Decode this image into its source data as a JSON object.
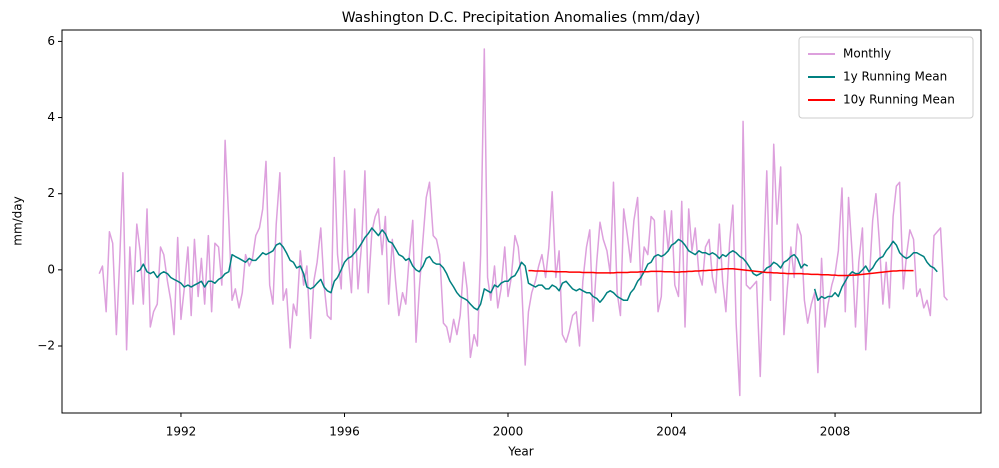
{
  "chart_data": {
    "type": "line",
    "title": "Washington D.C. Precipitation Anomalies (mm/day)",
    "xlabel": "Year",
    "ylabel": "mm/day",
    "x": [
      1990.0,
      1990.08,
      1990.17,
      1990.25,
      1990.33,
      1990.42,
      1990.5,
      1990.58,
      1990.67,
      1990.75,
      1990.83,
      1990.92,
      1991.0,
      1991.08,
      1991.17,
      1991.25,
      1991.33,
      1991.42,
      1991.5,
      1991.58,
      1991.67,
      1991.75,
      1991.83,
      1991.92,
      1992.0,
      1992.08,
      1992.17,
      1992.25,
      1992.33,
      1992.42,
      1992.5,
      1992.58,
      1992.67,
      1992.75,
      1992.83,
      1992.92,
      1993.0,
      1993.08,
      1993.17,
      1993.25,
      1993.33,
      1993.42,
      1993.5,
      1993.58,
      1993.67,
      1993.75,
      1993.83,
      1993.92,
      1994.0,
      1994.08,
      1994.17,
      1994.25,
      1994.33,
      1994.42,
      1994.5,
      1994.58,
      1994.67,
      1994.75,
      1994.83,
      1994.92,
      1995.0,
      1995.08,
      1995.17,
      1995.25,
      1995.33,
      1995.42,
      1995.5,
      1995.58,
      1995.67,
      1995.75,
      1995.83,
      1995.92,
      1996.0,
      1996.08,
      1996.17,
      1996.25,
      1996.33,
      1996.42,
      1996.5,
      1996.58,
      1996.67,
      1996.75,
      1996.83,
      1996.92,
      1997.0,
      1997.08,
      1997.17,
      1997.25,
      1997.33,
      1997.42,
      1997.5,
      1997.58,
      1997.67,
      1997.75,
      1997.83,
      1997.92,
      1998.0,
      1998.08,
      1998.17,
      1998.25,
      1998.33,
      1998.42,
      1998.5,
      1998.58,
      1998.67,
      1998.75,
      1998.83,
      1998.92,
      1999.0,
      1999.08,
      1999.17,
      1999.25,
      1999.33,
      1999.42,
      1999.5,
      1999.58,
      1999.67,
      1999.75,
      1999.83,
      1999.92,
      2000.0,
      2000.08,
      2000.17,
      2000.25,
      2000.33,
      2000.42,
      2000.5,
      2000.58,
      2000.67,
      2000.75,
      2000.83,
      2000.92,
      2001.0,
      2001.08,
      2001.17,
      2001.25,
      2001.33,
      2001.42,
      2001.5,
      2001.58,
      2001.67,
      2001.75,
      2001.83,
      2001.92,
      2002.0,
      2002.08,
      2002.17,
      2002.25,
      2002.33,
      2002.42,
      2002.5,
      2002.58,
      2002.67,
      2002.75,
      2002.83,
      2002.92,
      2003.0,
      2003.08,
      2003.17,
      2003.25,
      2003.33,
      2003.42,
      2003.5,
      2003.58,
      2003.67,
      2003.75,
      2003.83,
      2003.92,
      2004.0,
      2004.08,
      2004.17,
      2004.25,
      2004.33,
      2004.42,
      2004.5,
      2004.58,
      2004.67,
      2004.75,
      2004.83,
      2004.92,
      2005.0,
      2005.08,
      2005.17,
      2005.25,
      2005.33,
      2005.42,
      2005.5,
      2005.58,
      2005.67,
      2005.75,
      2005.83,
      2005.92,
      2006.0,
      2006.08,
      2006.17,
      2006.25,
      2006.33,
      2006.42,
      2006.5,
      2006.58,
      2006.67,
      2006.75,
      2006.83,
      2006.92,
      2007.0,
      2007.08,
      2007.17,
      2007.25,
      2007.33,
      2007.42,
      2007.5,
      2007.58,
      2007.67,
      2007.75,
      2007.83,
      2007.92,
      2008.0,
      2008.08,
      2008.17,
      2008.25,
      2008.33,
      2008.42,
      2008.5,
      2008.58,
      2008.67,
      2008.75,
      2008.83,
      2008.92,
      2009.0,
      2009.08,
      2009.17,
      2009.25,
      2009.33,
      2009.42,
      2009.5,
      2009.58,
      2009.67,
      2009.75,
      2009.83,
      2009.92,
      2010.0,
      2010.08,
      2010.17,
      2010.25,
      2010.33,
      2010.42,
      2010.5,
      2010.58,
      2010.67,
      2010.75
    ],
    "series": [
      {
        "name": "Monthly",
        "color": "#dda0dd",
        "values": [
          -0.1,
          0.1,
          -1.1,
          1.0,
          0.7,
          -1.7,
          0.2,
          2.55,
          -2.1,
          0.6,
          -0.9,
          1.2,
          0.5,
          -0.9,
          1.6,
          -1.5,
          -1.1,
          -0.9,
          0.6,
          0.4,
          -0.3,
          -0.8,
          -1.7,
          0.85,
          -1.3,
          -0.5,
          0.6,
          -1.2,
          0.8,
          -0.7,
          0.3,
          -0.9,
          0.9,
          -1.1,
          0.7,
          0.6,
          -0.4,
          3.4,
          1.3,
          -0.8,
          -0.5,
          -1.0,
          -0.6,
          0.4,
          0.1,
          0.3,
          0.9,
          1.1,
          1.6,
          2.85,
          -0.4,
          -0.9,
          1.2,
          2.55,
          -0.8,
          -0.5,
          -2.05,
          -0.9,
          -1.2,
          0.5,
          -0.4,
          0.1,
          -1.8,
          -0.3,
          0.2,
          1.1,
          -0.4,
          -1.2,
          -1.3,
          2.95,
          0.4,
          -0.5,
          2.6,
          0.5,
          -0.6,
          1.6,
          -0.5,
          0.7,
          2.6,
          -0.6,
          1.0,
          1.4,
          1.6,
          0.4,
          1.4,
          -0.9,
          0.8,
          -0.3,
          -1.2,
          -0.6,
          -0.9,
          0.3,
          1.3,
          -1.9,
          -0.5,
          0.8,
          1.9,
          2.3,
          0.9,
          0.8,
          0.4,
          -1.4,
          -1.5,
          -1.9,
          -1.3,
          -1.7,
          -1.2,
          0.2,
          -0.5,
          -2.3,
          -1.7,
          -2.0,
          0.4,
          5.8,
          -0.2,
          -0.8,
          0.1,
          -1.0,
          -0.5,
          0.6,
          -0.7,
          -0.2,
          0.9,
          0.6,
          -0.3,
          -2.5,
          -1.1,
          -0.6,
          -0.3,
          0.1,
          0.4,
          -0.2,
          0.6,
          2.05,
          -0.2,
          0.5,
          -1.7,
          -1.9,
          -1.6,
          -1.2,
          -1.1,
          -2.0,
          -0.3,
          0.6,
          1.05,
          -1.35,
          0.2,
          1.25,
          0.8,
          0.5,
          -0.1,
          2.3,
          -0.6,
          -1.2,
          1.6,
          0.9,
          0.2,
          1.3,
          1.9,
          -0.4,
          0.6,
          0.4,
          1.4,
          1.3,
          -1.1,
          -0.7,
          1.55,
          0.5,
          1.55,
          -0.4,
          -0.7,
          1.8,
          -1.5,
          1.6,
          0.5,
          1.1,
          -0.1,
          -0.4,
          0.6,
          0.8,
          -0.2,
          -0.6,
          1.2,
          -0.3,
          -1.1,
          0.7,
          1.7,
          -1.4,
          -3.3,
          3.9,
          -0.4,
          -0.5,
          -0.4,
          -0.3,
          -2.8,
          0.1,
          2.6,
          -0.8,
          3.3,
          1.2,
          2.7,
          -1.7,
          -0.5,
          0.6,
          -0.2,
          1.2,
          0.9,
          -0.8,
          -1.4,
          -0.9,
          -0.6,
          -2.7,
          0.3,
          -1.5,
          -0.9,
          -0.4,
          -0.1,
          0.5,
          2.15,
          -1.1,
          1.9,
          0.4,
          -1.5,
          0.2,
          1.1,
          -2.1,
          -0.4,
          1.3,
          2.0,
          0.8,
          -0.9,
          0.2,
          -1.0,
          1.4,
          2.2,
          2.3,
          -0.5,
          0.4,
          1.05,
          0.8,
          -0.7,
          -0.5,
          -1.0,
          -0.8,
          -1.2,
          0.9,
          1.0,
          1.1,
          -0.7,
          -0.8
        ]
      },
      {
        "name": "1y Running Mean",
        "color": "#008080",
        "values": [
          null,
          null,
          null,
          null,
          null,
          null,
          null,
          null,
          null,
          null,
          null,
          -0.05,
          0.0,
          0.15,
          -0.05,
          -0.1,
          -0.05,
          -0.2,
          -0.1,
          -0.05,
          -0.1,
          -0.2,
          -0.25,
          -0.3,
          -0.35,
          -0.45,
          -0.4,
          -0.45,
          -0.4,
          -0.35,
          -0.3,
          -0.45,
          -0.3,
          -0.3,
          -0.35,
          -0.25,
          -0.2,
          -0.1,
          -0.05,
          0.4,
          0.35,
          0.3,
          0.25,
          0.2,
          0.3,
          0.25,
          0.25,
          0.35,
          0.45,
          0.4,
          0.45,
          0.5,
          0.65,
          0.7,
          0.6,
          0.45,
          0.25,
          0.2,
          0.05,
          0.1,
          -0.1,
          -0.45,
          -0.5,
          -0.45,
          -0.35,
          -0.25,
          -0.45,
          -0.55,
          -0.6,
          -0.3,
          -0.2,
          0.0,
          0.2,
          0.3,
          0.35,
          0.45,
          0.55,
          0.7,
          0.85,
          0.95,
          1.1,
          1.0,
          0.9,
          1.05,
          0.95,
          0.75,
          0.7,
          0.55,
          0.4,
          0.35,
          0.25,
          0.3,
          0.1,
          0.0,
          -0.05,
          0.1,
          0.3,
          0.35,
          0.2,
          0.15,
          0.15,
          0.05,
          -0.1,
          -0.3,
          -0.45,
          -0.6,
          -0.7,
          -0.75,
          -0.8,
          -0.9,
          -1.0,
          -1.05,
          -0.9,
          -0.5,
          -0.55,
          -0.6,
          -0.4,
          -0.45,
          -0.35,
          -0.3,
          -0.3,
          -0.2,
          -0.15,
          0.0,
          0.2,
          0.1,
          -0.35,
          -0.4,
          -0.45,
          -0.4,
          -0.4,
          -0.5,
          -0.5,
          -0.4,
          -0.45,
          -0.55,
          -0.35,
          -0.3,
          -0.4,
          -0.5,
          -0.55,
          -0.5,
          -0.55,
          -0.6,
          -0.6,
          -0.7,
          -0.75,
          -0.85,
          -0.75,
          -0.6,
          -0.55,
          -0.6,
          -0.7,
          -0.75,
          -0.8,
          -0.8,
          -0.6,
          -0.5,
          -0.3,
          -0.2,
          -0.05,
          0.15,
          0.2,
          0.35,
          0.4,
          0.35,
          0.4,
          0.5,
          0.65,
          0.7,
          0.8,
          0.75,
          0.65,
          0.5,
          0.45,
          0.4,
          0.5,
          0.45,
          0.45,
          0.4,
          0.45,
          0.4,
          0.3,
          0.4,
          0.35,
          0.45,
          0.5,
          0.45,
          0.35,
          0.3,
          0.2,
          0.05,
          -0.1,
          -0.15,
          -0.1,
          -0.05,
          0.05,
          0.1,
          0.2,
          0.15,
          0.05,
          0.2,
          0.25,
          0.35,
          0.4,
          0.3,
          0.05,
          0.15,
          0.1,
          null,
          -0.5,
          -0.8,
          -0.7,
          -0.75,
          -0.7,
          -0.7,
          -0.6,
          -0.7,
          -0.45,
          -0.3,
          -0.15,
          -0.05,
          -0.1,
          -0.1,
          0.0,
          0.1,
          -0.05,
          0.05,
          0.2,
          0.3,
          0.35,
          0.5,
          0.6,
          0.75,
          0.65,
          0.45,
          0.35,
          0.3,
          0.35,
          0.45,
          0.45,
          0.4,
          0.35,
          0.2,
          0.1,
          0.05,
          -0.05,
          null,
          null,
          null
        ]
      },
      {
        "name": "10y Running Mean",
        "color": "#ff0000",
        "values": [
          null,
          null,
          null,
          null,
          null,
          null,
          null,
          null,
          null,
          null,
          null,
          null,
          null,
          null,
          null,
          null,
          null,
          null,
          null,
          null,
          null,
          null,
          null,
          null,
          null,
          null,
          null,
          null,
          null,
          null,
          null,
          null,
          null,
          null,
          null,
          null,
          null,
          null,
          null,
          null,
          null,
          null,
          null,
          null,
          null,
          null,
          null,
          null,
          null,
          null,
          null,
          null,
          null,
          null,
          null,
          null,
          null,
          null,
          null,
          null,
          null,
          null,
          null,
          null,
          null,
          null,
          null,
          null,
          null,
          null,
          null,
          null,
          null,
          null,
          null,
          null,
          null,
          null,
          null,
          null,
          null,
          null,
          null,
          null,
          null,
          null,
          null,
          null,
          null,
          null,
          null,
          null,
          null,
          null,
          null,
          null,
          null,
          null,
          null,
          null,
          null,
          null,
          null,
          null,
          null,
          null,
          null,
          null,
          null,
          null,
          null,
          null,
          null,
          null,
          null,
          null,
          null,
          null,
          null,
          null,
          null,
          null,
          null,
          null,
          null,
          null,
          -0.02,
          -0.02,
          -0.03,
          -0.03,
          -0.03,
          -0.04,
          -0.04,
          -0.04,
          -0.05,
          -0.05,
          -0.05,
          -0.05,
          -0.06,
          -0.06,
          -0.06,
          -0.06,
          -0.07,
          -0.07,
          -0.07,
          -0.07,
          -0.08,
          -0.08,
          -0.08,
          -0.08,
          -0.08,
          -0.08,
          -0.07,
          -0.07,
          -0.07,
          -0.07,
          -0.06,
          -0.06,
          -0.06,
          -0.05,
          -0.05,
          -0.05,
          -0.04,
          -0.04,
          -0.04,
          -0.04,
          -0.05,
          -0.05,
          -0.05,
          -0.06,
          -0.06,
          -0.05,
          -0.05,
          -0.04,
          -0.04,
          -0.03,
          -0.03,
          -0.02,
          -0.02,
          -0.01,
          -0.01,
          0.0,
          0.01,
          0.02,
          0.03,
          0.03,
          0.03,
          0.02,
          0.01,
          0.0,
          -0.01,
          -0.02,
          -0.03,
          -0.04,
          -0.05,
          -0.06,
          -0.07,
          -0.07,
          -0.08,
          -0.08,
          -0.09,
          -0.09,
          -0.1,
          -0.1,
          -0.1,
          -0.1,
          -0.1,
          -0.11,
          -0.11,
          -0.12,
          -0.12,
          -0.12,
          -0.13,
          -0.13,
          -0.13,
          -0.14,
          -0.14,
          -0.15,
          -0.15,
          -0.15,
          -0.15,
          -0.14,
          -0.14,
          -0.13,
          -0.12,
          -0.11,
          -0.1,
          -0.09,
          -0.08,
          -0.07,
          -0.06,
          -0.05,
          -0.04,
          -0.03,
          -0.03,
          -0.02,
          -0.02,
          -0.02,
          -0.02,
          -0.02,
          null,
          null,
          null,
          null,
          null,
          null,
          null,
          null,
          null,
          null
        ]
      }
    ],
    "xlim": [
      1989.09,
      2011.57
    ],
    "xticks": [
      1992,
      1996,
      2000,
      2004,
      2008
    ],
    "ylim": [
      -3.76,
      6.3
    ],
    "yticks": [
      {
        "value": -2,
        "label": "−2"
      },
      0,
      2,
      4,
      6
    ],
    "grid": false,
    "legend": "upper right"
  }
}
